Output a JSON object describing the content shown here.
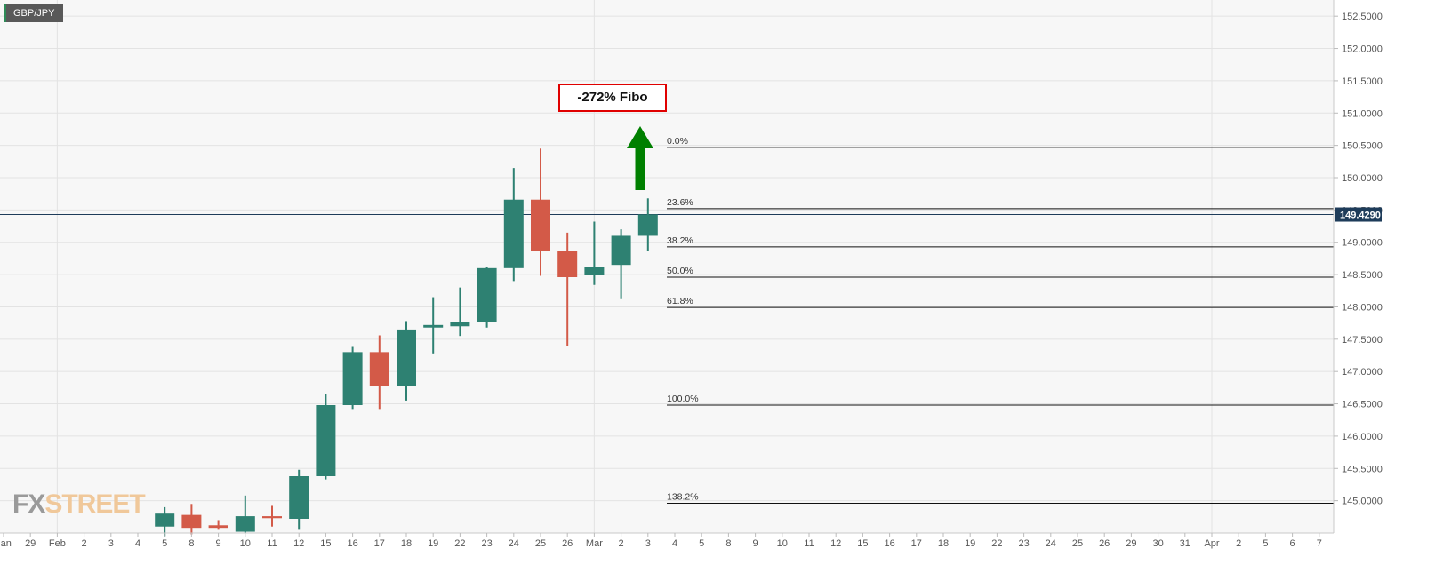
{
  "chart_data": {
    "type": "candlestick",
    "symbol": "GBP/JPY",
    "current_price": 149.429,
    "current_price_label": "149.4290",
    "ylim": [
      144.5,
      152.75
    ],
    "y_ticks": [
      "145.0000",
      "145.5000",
      "146.0000",
      "146.5000",
      "147.0000",
      "147.5000",
      "148.0000",
      "148.5000",
      "149.0000",
      "149.5000",
      "150.0000",
      "150.5000",
      "151.0000",
      "151.5000",
      "152.0000",
      "152.5000"
    ],
    "x_ticks": [
      "Jan",
      "29",
      "Feb",
      "2",
      "3",
      "4",
      "5",
      "8",
      "9",
      "10",
      "11",
      "12",
      "15",
      "16",
      "17",
      "18",
      "19",
      "22",
      "23",
      "24",
      "25",
      "26",
      "Mar",
      "2",
      "3",
      "4",
      "5",
      "8",
      "9",
      "10",
      "11",
      "12",
      "15",
      "16",
      "17",
      "18",
      "19",
      "22",
      "23",
      "24",
      "25",
      "26",
      "29",
      "30",
      "31",
      "Apr",
      "2",
      "5",
      "6",
      "7"
    ],
    "candles": [
      {
        "date": "5",
        "open": 144.6,
        "high": 144.9,
        "low": 144.45,
        "close": 144.8
      },
      {
        "date": "8",
        "open": 144.78,
        "high": 144.95,
        "low": 144.48,
        "close": 144.58
      },
      {
        "date": "9",
        "open": 144.62,
        "high": 144.7,
        "low": 144.55,
        "close": 144.58
      },
      {
        "date": "10",
        "open": 144.52,
        "high": 145.08,
        "low": 144.5,
        "close": 144.76
      },
      {
        "date": "11",
        "open": 144.76,
        "high": 144.92,
        "low": 144.6,
        "close": 144.73
      },
      {
        "date": "12",
        "open": 144.72,
        "high": 145.48,
        "low": 144.55,
        "close": 145.38
      },
      {
        "date": "15",
        "open": 145.38,
        "high": 146.65,
        "low": 145.33,
        "close": 146.48
      },
      {
        "date": "16",
        "open": 146.48,
        "high": 147.38,
        "low": 146.42,
        "close": 147.3
      },
      {
        "date": "17",
        "open": 147.3,
        "high": 147.56,
        "low": 146.42,
        "close": 146.78
      },
      {
        "date": "18",
        "open": 146.78,
        "high": 147.78,
        "low": 146.55,
        "close": 147.65
      },
      {
        "date": "19",
        "open": 147.68,
        "high": 148.15,
        "low": 147.28,
        "close": 147.72
      },
      {
        "date": "22",
        "open": 147.7,
        "high": 148.3,
        "low": 147.55,
        "close": 147.76
      },
      {
        "date": "23",
        "open": 147.76,
        "high": 148.62,
        "low": 147.68,
        "close": 148.6
      },
      {
        "date": "24",
        "open": 148.6,
        "high": 150.15,
        "low": 148.4,
        "close": 149.66
      },
      {
        "date": "25",
        "open": 149.66,
        "high": 150.45,
        "low": 148.48,
        "close": 148.86
      },
      {
        "date": "26",
        "open": 148.86,
        "high": 149.15,
        "low": 147.4,
        "close": 148.46
      },
      {
        "date": "Mar",
        "open": 148.5,
        "high": 149.32,
        "low": 148.34,
        "close": 148.62
      },
      {
        "date": "2",
        "open": 148.65,
        "high": 149.2,
        "low": 148.12,
        "close": 149.1
      },
      {
        "date": "3",
        "open": 149.1,
        "high": 149.68,
        "low": 148.86,
        "close": 149.43
      }
    ],
    "fibonacci": [
      {
        "label": "0.0%",
        "price": 150.47
      },
      {
        "label": "23.6%",
        "price": 149.52
      },
      {
        "label": "38.2%",
        "price": 148.93
      },
      {
        "label": "50.0%",
        "price": 148.46
      },
      {
        "label": "61.8%",
        "price": 147.99
      },
      {
        "label": "100.0%",
        "price": 146.48
      },
      {
        "label": "138.2%",
        "price": 144.96
      }
    ],
    "annotation": "-272% Fibo",
    "colors": {
      "up": "#2e8172",
      "down": "#d35a48",
      "arrow": "#008000",
      "annotation_border": "#e00000",
      "price_label_bg": "#1e3c5a"
    }
  },
  "watermark": {
    "fx": "FX",
    "street": "STREET"
  }
}
